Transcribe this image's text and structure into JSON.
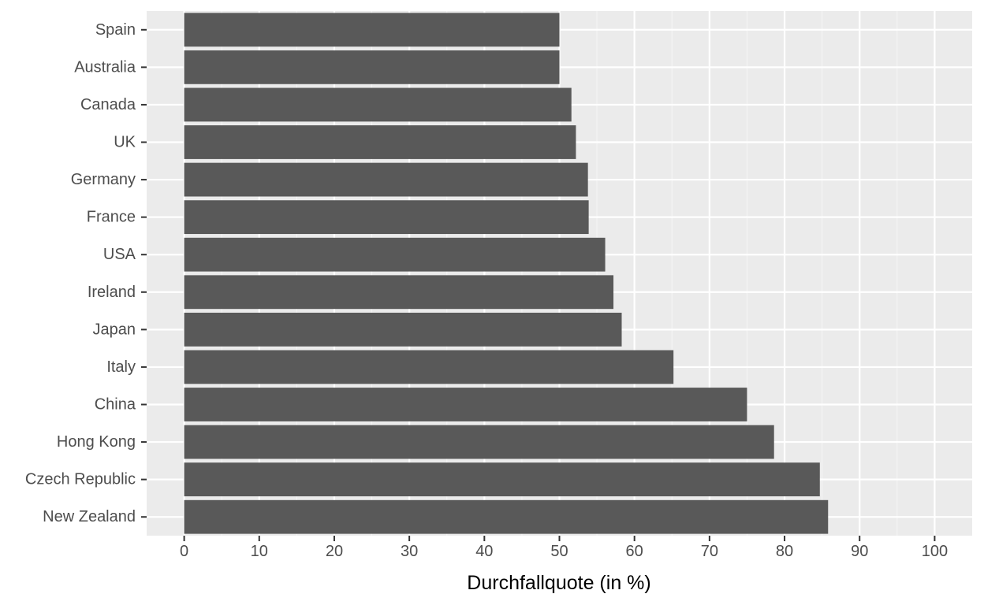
{
  "colors": {
    "panel_background": "#ebebeb",
    "grid_major": "#ffffff",
    "grid_minor": "#f5f5f5",
    "bar_fill": "#595959",
    "tick_text": "#4d4d4d",
    "tick_mark": "#333333",
    "axis_title_text": "#000000"
  },
  "chart_data": {
    "type": "bar",
    "orientation": "horizontal",
    "categories": [
      "Spain",
      "Australia",
      "Canada",
      "UK",
      "Germany",
      "France",
      "USA",
      "Ireland",
      "Japan",
      "Italy",
      "China",
      "Hong Kong",
      "Czech Republic",
      "New Zealand"
    ],
    "values": [
      50.0,
      50.0,
      51.6,
      52.2,
      53.8,
      53.9,
      56.1,
      57.2,
      58.3,
      65.2,
      75.0,
      78.6,
      84.7,
      85.8
    ],
    "xlabel": "Durchfallquote (in %)",
    "ylabel": "",
    "xlim": [
      -5,
      105
    ],
    "x_ticks": [
      0,
      10,
      20,
      30,
      40,
      50,
      60,
      70,
      80,
      90,
      100
    ],
    "grid": true,
    "legend": "none"
  }
}
